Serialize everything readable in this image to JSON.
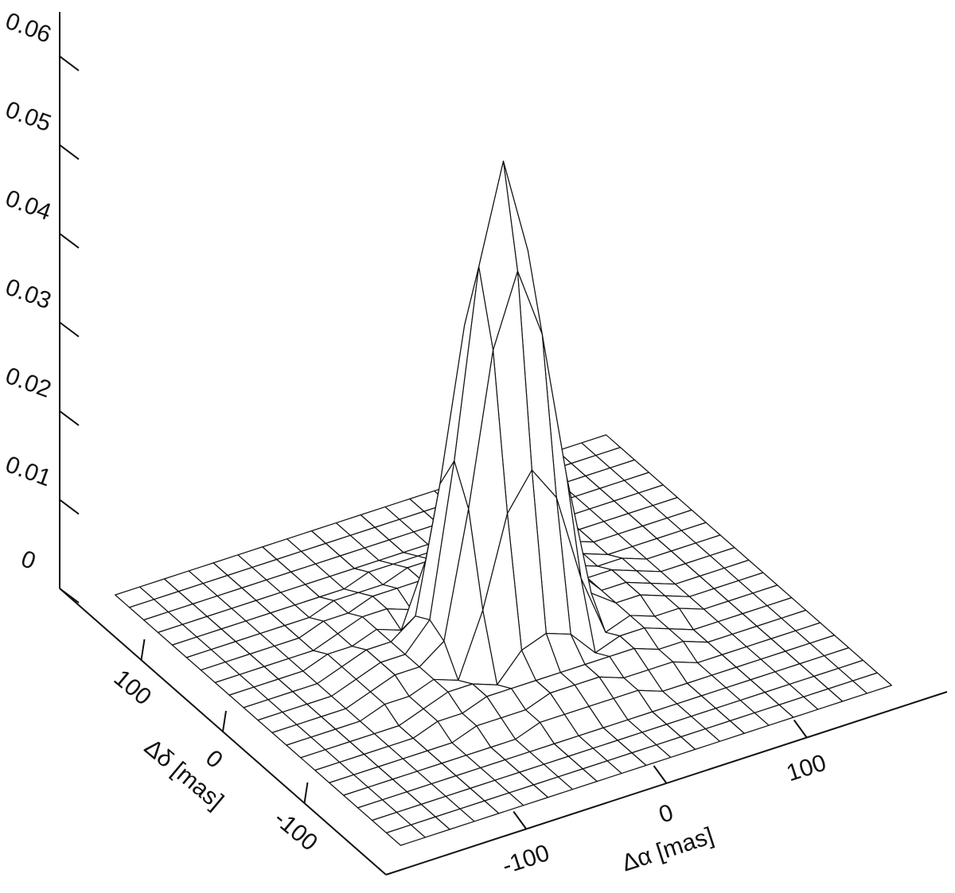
{
  "chart_data": {
    "type": "surface",
    "xlabel": "Δα [mas]",
    "ylabel": "Δδ [mas]",
    "x": [
      -175,
      -157.5,
      -140,
      -122.5,
      -105,
      -87.5,
      -70,
      -52.5,
      -35,
      -17.5,
      0,
      17.5,
      35,
      52.5,
      70,
      87.5,
      105,
      122.5,
      140,
      157.5,
      175
    ],
    "y": [
      -175,
      -157.5,
      -140,
      -122.5,
      -105,
      -87.5,
      -70,
      -52.5,
      -35,
      -17.5,
      0,
      17.5,
      35,
      52.5,
      70,
      87.5,
      105,
      122.5,
      140,
      157.5,
      175
    ],
    "z": [
      [
        0,
        0,
        0,
        0,
        0,
        0,
        0,
        0,
        0,
        0,
        0,
        0,
        0,
        0,
        0,
        0,
        0,
        0,
        0,
        0,
        0
      ],
      [
        0,
        0,
        0,
        0,
        0,
        0,
        0,
        0,
        0,
        0,
        0,
        0,
        0,
        0,
        0,
        0,
        0,
        0,
        0,
        0,
        0
      ],
      [
        0,
        0,
        0,
        0,
        0,
        0,
        0,
        0,
        0,
        0,
        0,
        0,
        0,
        0,
        0,
        0,
        0,
        0,
        0,
        0,
        0
      ],
      [
        0,
        0,
        0,
        0,
        0,
        0,
        0,
        0,
        0,
        0,
        0,
        0,
        0,
        0,
        0,
        0,
        0,
        0,
        0,
        0,
        0
      ],
      [
        0,
        0,
        0,
        0,
        0,
        0,
        0,
        0,
        0.001,
        0.001,
        0.001,
        0.001,
        0.001,
        0,
        0,
        0,
        0,
        0,
        0,
        0,
        0
      ],
      [
        0,
        0,
        0,
        0,
        0,
        0,
        0.001,
        0.001,
        0.001,
        0.002,
        0.002,
        0.002,
        0.001,
        0.001,
        0.001,
        0,
        0,
        0,
        0,
        0,
        0
      ],
      [
        0,
        0,
        0,
        0,
        0,
        0.001,
        0.001,
        0.002,
        0.002,
        0.002,
        0.002,
        0.002,
        0.002,
        0.002,
        0.001,
        0.001,
        0,
        0,
        0,
        0,
        0
      ],
      [
        0,
        0,
        0,
        0,
        0,
        0.001,
        0.002,
        0.002,
        0.001,
        0.004,
        0.005,
        0.004,
        0.001,
        0.002,
        0.002,
        0.001,
        0,
        0,
        0,
        0,
        0
      ],
      [
        0,
        0,
        0,
        0,
        0.001,
        0.001,
        0.002,
        0.001,
        0.008,
        0.018,
        0.022,
        0.018,
        0.008,
        0.001,
        0.002,
        0.001,
        0.001,
        0,
        0,
        0,
        0
      ],
      [
        0,
        0,
        0,
        0,
        0.001,
        0.002,
        0.002,
        0.004,
        0.018,
        0.035,
        0.043,
        0.035,
        0.018,
        0.004,
        0.002,
        0.002,
        0.001,
        0,
        0,
        0,
        0
      ],
      [
        0,
        0,
        0,
        0,
        0.001,
        0.002,
        0.002,
        0.005,
        0.022,
        0.043,
        0.054,
        0.043,
        0.022,
        0.005,
        0.002,
        0.002,
        0.001,
        0,
        0,
        0,
        0
      ],
      [
        0,
        0,
        0,
        0,
        0.001,
        0.002,
        0.002,
        0.004,
        0.018,
        0.035,
        0.043,
        0.035,
        0.018,
        0.004,
        0.002,
        0.002,
        0.001,
        0,
        0,
        0,
        0
      ],
      [
        0,
        0,
        0,
        0,
        0.001,
        0.001,
        0.002,
        0.001,
        0.008,
        0.018,
        0.022,
        0.018,
        0.008,
        0.001,
        0.002,
        0.001,
        0.001,
        0,
        0,
        0,
        0
      ],
      [
        0,
        0,
        0,
        0,
        0,
        0.001,
        0.002,
        0.002,
        0.001,
        0.004,
        0.005,
        0.004,
        0.001,
        0.002,
        0.002,
        0.001,
        0,
        0,
        0,
        0,
        0
      ],
      [
        0,
        0,
        0,
        0,
        0,
        0.001,
        0.001,
        0.002,
        0.002,
        0.002,
        0.002,
        0.002,
        0.002,
        0.002,
        0.001,
        0.001,
        0,
        0,
        0,
        0,
        0
      ],
      [
        0,
        0,
        0,
        0,
        0,
        0,
        0.001,
        0.001,
        0.001,
        0.002,
        0.002,
        0.002,
        0.001,
        0.001,
        0.001,
        0,
        0,
        0,
        0,
        0,
        0
      ],
      [
        0,
        0,
        0,
        0,
        0,
        0,
        0,
        0,
        0.001,
        0.001,
        0.001,
        0.001,
        0.001,
        0,
        0,
        0,
        0,
        0,
        0,
        0,
        0
      ],
      [
        0,
        0,
        0,
        0,
        0,
        0,
        0,
        0,
        0,
        0,
        0,
        0,
        0,
        0,
        0,
        0,
        0,
        0,
        0,
        0,
        0
      ],
      [
        0,
        0,
        0,
        0,
        0,
        0,
        0,
        0,
        0,
        0,
        0,
        0,
        0,
        0,
        0,
        0,
        0,
        0,
        0,
        0,
        0
      ],
      [
        0,
        0,
        0,
        0,
        0,
        0,
        0,
        0,
        0,
        0,
        0,
        0,
        0,
        0,
        0,
        0,
        0,
        0,
        0,
        0,
        0
      ],
      [
        0,
        0,
        0,
        0,
        0,
        0,
        0,
        0,
        0,
        0,
        0,
        0,
        0,
        0,
        0,
        0,
        0,
        0,
        0,
        0,
        0
      ]
    ],
    "xlim": [
      -200,
      200
    ],
    "ylim": [
      -200,
      200
    ],
    "zlim": [
      0,
      0.065
    ],
    "xticks": [
      -100,
      0,
      100
    ],
    "yticks": [
      -100,
      0,
      100
    ],
    "zticks": [
      0,
      0.01,
      0.02,
      0.03,
      0.04,
      0.05,
      0.06
    ]
  }
}
